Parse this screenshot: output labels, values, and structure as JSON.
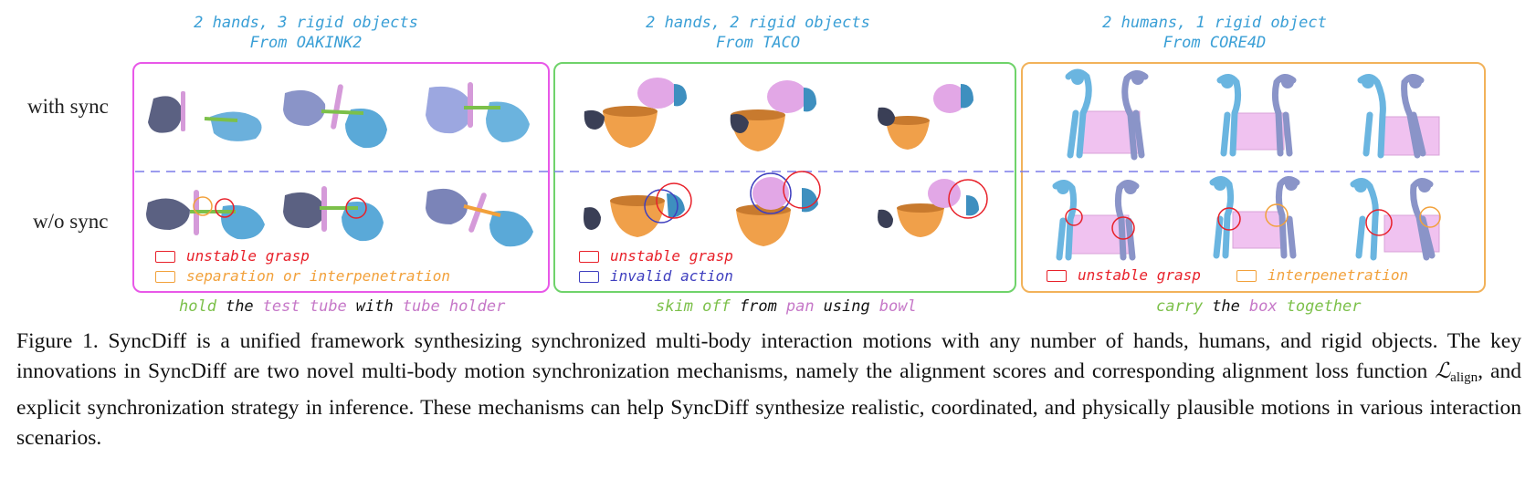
{
  "headers": [
    {
      "line1": "2 hands, 3 rigid objects",
      "line2": "From OAKINK2"
    },
    {
      "line1": "2 hands, 2 rigid objects",
      "line2": "From TACO"
    },
    {
      "line1": "2 humans, 1 rigid object",
      "line2": "From CORE4D"
    }
  ],
  "row_labels": {
    "top": "with sync",
    "bottom": "w/o sync"
  },
  "legends": {
    "p1": [
      {
        "label": "unstable grasp",
        "color": "#e8212a"
      },
      {
        "label": "separation or interpenetration",
        "color": "#f2a13b"
      }
    ],
    "p2": [
      {
        "label": "unstable grasp",
        "color": "#e8212a"
      },
      {
        "label": "invalid action",
        "color": "#3f3fbf"
      }
    ],
    "p3": [
      {
        "label": "unstable grasp",
        "color": "#e8212a"
      },
      {
        "label": "interpenetration",
        "color": "#f2a13b"
      }
    ]
  },
  "panel_colors": [
    "#e858e8",
    "#6fd36a",
    "#f2b25a"
  ],
  "captions": {
    "p1": [
      {
        "w": "hold",
        "c": "#7cc04a"
      },
      {
        "w": "the",
        "c": "#111111"
      },
      {
        "w": "test tube",
        "c": "#c678c8"
      },
      {
        "w": "with",
        "c": "#111111"
      },
      {
        "w": "tube holder",
        "c": "#c678c8"
      }
    ],
    "p2": [
      {
        "w": "skim off",
        "c": "#7cc04a"
      },
      {
        "w": "from",
        "c": "#111111"
      },
      {
        "w": "pan",
        "c": "#c678c8"
      },
      {
        "w": "using",
        "c": "#111111"
      },
      {
        "w": "bowl",
        "c": "#c678c8"
      }
    ],
    "p3": [
      {
        "w": "carry",
        "c": "#7cc04a"
      },
      {
        "w": "the",
        "c": "#111111"
      },
      {
        "w": "box",
        "c": "#c678c8"
      },
      {
        "w": "together",
        "c": "#7cc04a"
      }
    ]
  },
  "figure_caption": {
    "part1": "Figure 1. SyncDiff is a unified framework synthesizing synchronized multi-body interaction motions with any number of hands, humans, and rigid objects. The key innovations in SyncDiff are two novel multi-body motion synchronization mechanisms, namely the alignment scores and corresponding alignment loss function ",
    "math_symbol": "ℒ",
    "math_sub": "align",
    "part2": ", and explicit synchronization strategy in inference. These mechanisms can help SyncDiff synthesize realistic, coordinated, and physically plausible motions in various interaction scenarios."
  }
}
